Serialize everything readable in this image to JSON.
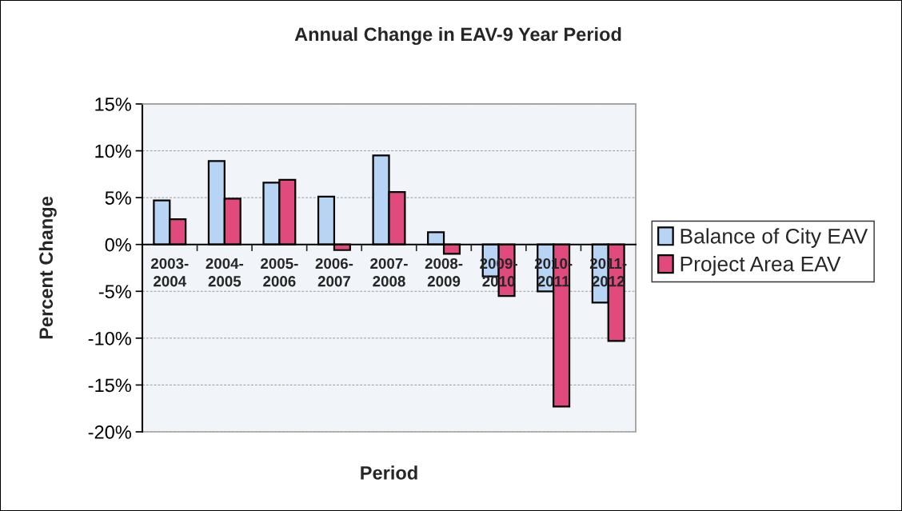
{
  "chart_data": {
    "type": "bar",
    "title": "Annual Change in EAV-9 Year Period",
    "xlabel": "Period",
    "ylabel": "Percent Change",
    "categories": [
      "2003-2004",
      "2004-2005",
      "2005-2006",
      "2006-2007",
      "2007-2008",
      "2008-2009",
      "2009-2010",
      "2010-2011",
      "2011-2012"
    ],
    "series": [
      {
        "name": "Balance of City EAV",
        "color": "#b8d4f5",
        "values": [
          4.7,
          8.9,
          6.6,
          5.1,
          9.5,
          1.3,
          -3.4,
          -5.0,
          -6.2
        ]
      },
      {
        "name": "Project Area EAV",
        "color": "#e04a7c",
        "values": [
          2.7,
          4.9,
          6.9,
          -0.6,
          5.6,
          -1.0,
          -5.5,
          -17.3,
          -10.3
        ]
      }
    ],
    "ylim": [
      -20,
      15
    ],
    "yticks": [
      {
        "value": -20,
        "label": "-20%"
      },
      {
        "value": -15,
        "label": "-15%"
      },
      {
        "value": -10,
        "label": "-10%"
      },
      {
        "value": -5,
        "label": "-5%"
      },
      {
        "value": 0,
        "label": "0%"
      },
      {
        "value": 5,
        "label": "5%"
      },
      {
        "value": 10,
        "label": "10%"
      },
      {
        "value": 15,
        "label": "15%"
      }
    ],
    "grid": "y",
    "legend": "right"
  }
}
